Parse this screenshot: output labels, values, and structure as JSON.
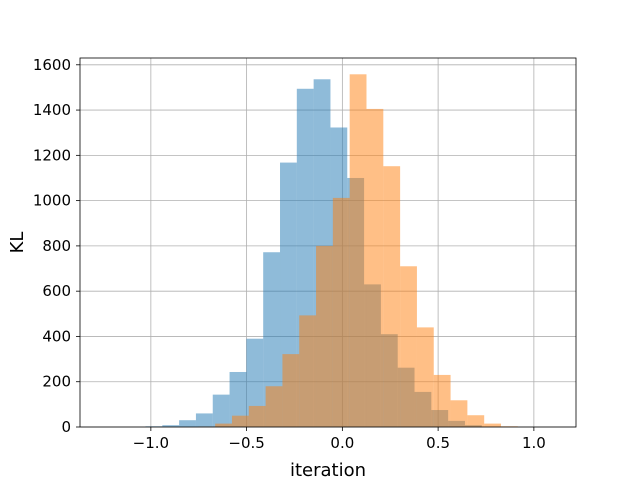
{
  "chart_data": {
    "type": "bar",
    "histogram": true,
    "xlabel": "iteration",
    "ylabel": "KL",
    "xlim": [
      -1.37,
      1.22
    ],
    "ylim": [
      0,
      1630
    ],
    "xticks": [
      -1.0,
      -0.5,
      0.0,
      0.5,
      1.0
    ],
    "xtick_labels": [
      "−1.0",
      "−0.5",
      "0.0",
      "0.5",
      "1.0"
    ],
    "yticks": [
      0,
      200,
      400,
      600,
      800,
      1000,
      1200,
      1400,
      1600
    ],
    "ytick_labels": [
      "0",
      "200",
      "400",
      "600",
      "800",
      "1000",
      "1200",
      "1400",
      "1600"
    ],
    "grid": true,
    "series": [
      {
        "color": "#1f77b4",
        "opacity": 0.5,
        "bin_start": -1.028,
        "bin_width": 0.0878,
        "values": [
          3,
          8,
          30,
          60,
          143,
          243,
          390,
          772,
          1168,
          1494,
          1536,
          1323,
          1100,
          630,
          410,
          262,
          155,
          75,
          27,
          8
        ]
      },
      {
        "color": "#ff7f0e",
        "opacity": 0.5,
        "bin_start": -0.752,
        "bin_width": 0.0878,
        "values": [
          2,
          15,
          50,
          93,
          180,
          322,
          493,
          800,
          1012,
          1558,
          1405,
          1152,
          710,
          440,
          230,
          118,
          52,
          15,
          3
        ]
      }
    ]
  }
}
